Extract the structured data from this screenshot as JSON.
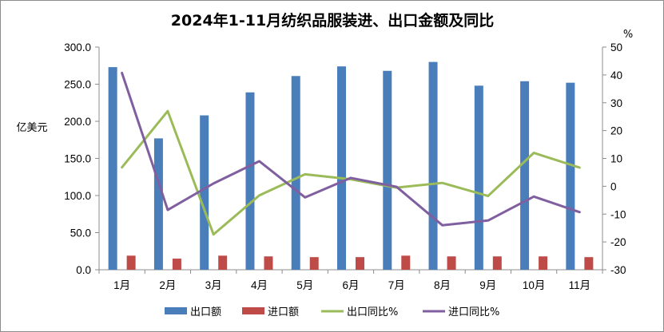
{
  "chart_data": {
    "type": "bar",
    "title": "2024年1-11月纺织品服装进、出口金额及同比",
    "ylabel_left": "亿美元",
    "ylabel_right": "%",
    "categories": [
      "1月",
      "2月",
      "3月",
      "4月",
      "5月",
      "6月",
      "7月",
      "8月",
      "9月",
      "10月",
      "11月"
    ],
    "y_left_ticks": [
      "0.0",
      "50.0",
      "100.0",
      "150.0",
      "200.0",
      "250.0",
      "300.0"
    ],
    "y_right_ticks": [
      "-30",
      "-20",
      "-10",
      "0",
      "10",
      "20",
      "30",
      "40",
      "50"
    ],
    "ylim_left": [
      0,
      300
    ],
    "ylim_right": [
      -30,
      50
    ],
    "grid": false,
    "legend_position": "bottom",
    "series": [
      {
        "name": "出口额",
        "type": "bar",
        "axis": "left",
        "color": "#4A7EBB",
        "values": [
          273,
          177,
          208,
          239,
          261,
          274,
          268,
          280,
          248,
          254,
          252
        ]
      },
      {
        "name": "进口额",
        "type": "bar",
        "axis": "left",
        "color": "#BE4B48",
        "values": [
          19,
          15,
          19,
          18,
          17,
          17,
          19,
          18,
          18,
          18,
          17
        ]
      },
      {
        "name": "出口同比%",
        "type": "line",
        "axis": "right",
        "color": "#9BBB59",
        "values": [
          6.8,
          27,
          -17.3,
          -3.3,
          4.3,
          2.5,
          -0.5,
          1.2,
          -3.5,
          12,
          6.7
        ]
      },
      {
        "name": "进口同比%",
        "type": "line",
        "axis": "right",
        "color": "#7F5F9F",
        "values": [
          40.7,
          -8.5,
          1,
          9,
          -4,
          3,
          -0.2,
          -14,
          -12.3,
          -3.7,
          -9.3
        ]
      }
    ]
  }
}
